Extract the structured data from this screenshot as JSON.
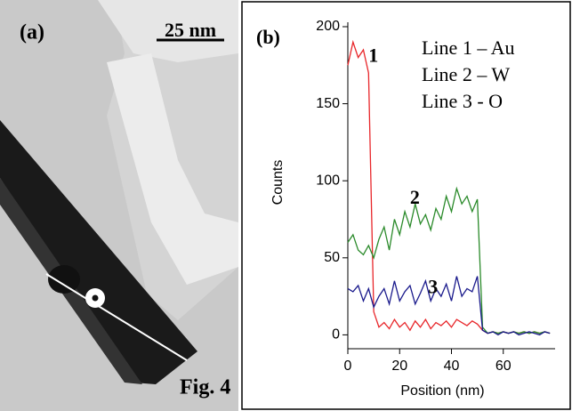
{
  "panel_a": {
    "label": "(a)",
    "scale_bar": "25 nm"
  },
  "figure_label": "Fig. 4",
  "chart_data": {
    "type": "line",
    "title": "(b)",
    "x_label": "Position (nm)",
    "y_label": "Counts",
    "x": [
      0,
      2,
      4,
      6,
      8,
      10,
      12,
      14,
      16,
      18,
      20,
      22,
      24,
      26,
      28,
      30,
      32,
      34,
      36,
      38,
      40,
      42,
      44,
      46,
      48,
      50,
      52,
      54,
      56,
      58,
      60,
      62,
      64,
      66,
      68,
      70,
      72,
      74,
      76,
      78
    ],
    "series": [
      {
        "name": "Line 1 – Au",
        "color": "#e8262a",
        "values": [
          175,
          190,
          180,
          185,
          170,
          15,
          5,
          8,
          4,
          10,
          5,
          8,
          3,
          9,
          5,
          10,
          4,
          8,
          6,
          9,
          5,
          10,
          8,
          6,
          9,
          7,
          3,
          1,
          2,
          1,
          2,
          1,
          2,
          1,
          2,
          1,
          2,
          1,
          2,
          1
        ]
      },
      {
        "name": "Line 2 – W",
        "color": "#2a8a2a",
        "values": [
          60,
          65,
          55,
          52,
          58,
          50,
          62,
          70,
          55,
          75,
          65,
          80,
          70,
          85,
          72,
          78,
          68,
          82,
          75,
          90,
          80,
          95,
          85,
          90,
          80,
          88,
          5,
          1,
          2,
          1,
          2,
          1,
          2,
          1,
          2,
          1,
          2,
          1,
          2,
          1
        ]
      },
      {
        "name": "Line 3 - O",
        "color": "#1a1a8c",
        "values": [
          30,
          28,
          32,
          22,
          30,
          18,
          25,
          30,
          20,
          35,
          22,
          28,
          32,
          20,
          27,
          35,
          22,
          30,
          25,
          33,
          22,
          38,
          25,
          30,
          28,
          38,
          3,
          1,
          2,
          0,
          2,
          1,
          2,
          0,
          1,
          2,
          1,
          0,
          2,
          1
        ]
      }
    ],
    "annotations": [
      {
        "text": "1",
        "x": 8,
        "y": 180
      },
      {
        "text": "2",
        "x": 24,
        "y": 88
      },
      {
        "text": "3",
        "x": 31,
        "y": 30
      }
    ],
    "xlim": [
      0,
      80
    ],
    "xticks": [
      0,
      20,
      40,
      60
    ],
    "ylim": [
      -9,
      200
    ],
    "yticks": [
      0,
      50,
      100,
      150,
      200
    ],
    "grid": false
  }
}
